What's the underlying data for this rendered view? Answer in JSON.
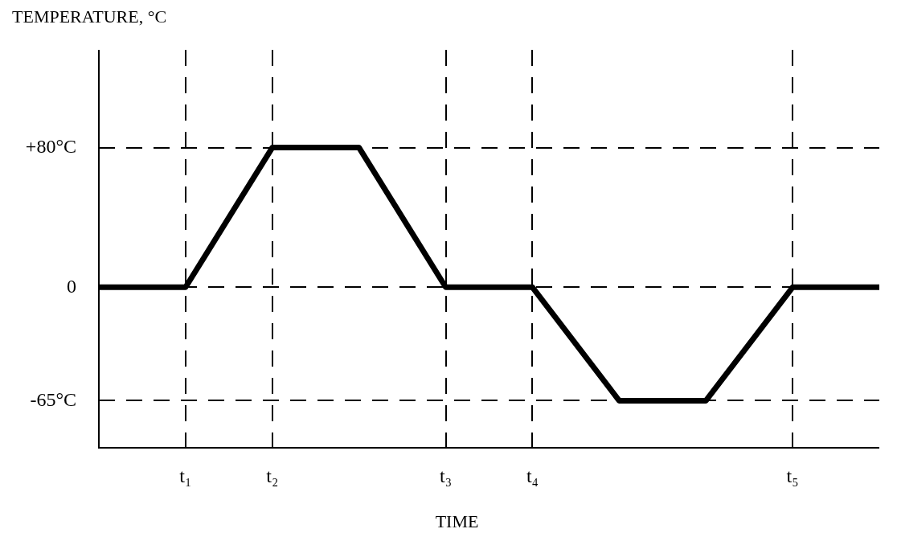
{
  "chart_data": {
    "type": "line",
    "ylabel": "TEMPERATURE, °C",
    "xlabel": "TIME",
    "categories": [
      null,
      "t₁",
      "t₂",
      null,
      "t₃",
      "t₄",
      null,
      null,
      "t₅",
      null
    ],
    "values": [
      0,
      0,
      80,
      80,
      0,
      0,
      -65,
      -65,
      0,
      0
    ],
    "color": "#000000",
    "line_style": "solid",
    "marker": "none",
    "ylim": [
      -92,
      136
    ],
    "yticks": [
      {
        "value": 80,
        "label": "+80°C"
      },
      0,
      {
        "value": -65,
        "label": "-65°C"
      }
    ],
    "grid": true
  }
}
